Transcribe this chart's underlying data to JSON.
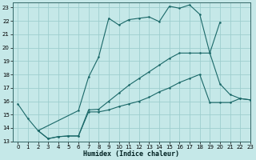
{
  "bg_color": "#c5e8e8",
  "grid_color": "#9ecece",
  "line_color": "#1a6868",
  "xlabel": "Humidex (Indice chaleur)",
  "xlim": [
    -0.5,
    23
  ],
  "ylim": [
    13,
    23.4
  ],
  "xticks": [
    0,
    1,
    2,
    3,
    4,
    5,
    6,
    7,
    8,
    9,
    10,
    11,
    12,
    13,
    14,
    15,
    16,
    17,
    18,
    19,
    20,
    21,
    22,
    23
  ],
  "yticks": [
    13,
    14,
    15,
    16,
    17,
    18,
    19,
    20,
    21,
    22,
    23
  ],
  "line1_x": [
    0,
    1,
    2,
    6,
    7,
    8,
    9,
    10,
    11,
    12,
    13,
    14,
    15,
    16,
    17,
    18,
    19,
    20
  ],
  "line1_y": [
    15.8,
    14.7,
    13.8,
    15.3,
    17.8,
    19.3,
    22.2,
    21.7,
    22.1,
    22.2,
    22.3,
    21.95,
    23.1,
    22.95,
    23.2,
    22.5,
    19.6,
    21.9
  ],
  "line2_x": [
    2,
    3,
    4,
    5,
    6,
    7,
    8,
    9,
    10,
    11,
    12,
    13,
    14,
    15,
    16,
    17,
    18,
    19,
    20,
    21,
    22,
    23
  ],
  "line2_y": [
    13.8,
    13.2,
    13.35,
    13.4,
    13.4,
    15.35,
    15.4,
    16.0,
    16.6,
    17.2,
    17.7,
    18.2,
    18.7,
    19.2,
    19.6,
    19.6,
    19.6,
    19.6,
    17.3,
    16.5,
    16.2,
    16.1
  ],
  "line3_x": [
    2,
    3,
    4,
    5,
    6,
    7,
    8,
    9,
    10,
    11,
    12,
    13,
    14,
    15,
    16,
    17,
    18,
    19,
    20,
    21,
    22,
    23
  ],
  "line3_y": [
    13.8,
    13.2,
    13.35,
    13.4,
    13.4,
    15.2,
    15.2,
    15.35,
    15.6,
    15.8,
    16.0,
    16.3,
    16.7,
    17.0,
    17.4,
    17.7,
    18.0,
    15.9,
    15.9,
    15.9,
    16.2,
    16.1
  ]
}
